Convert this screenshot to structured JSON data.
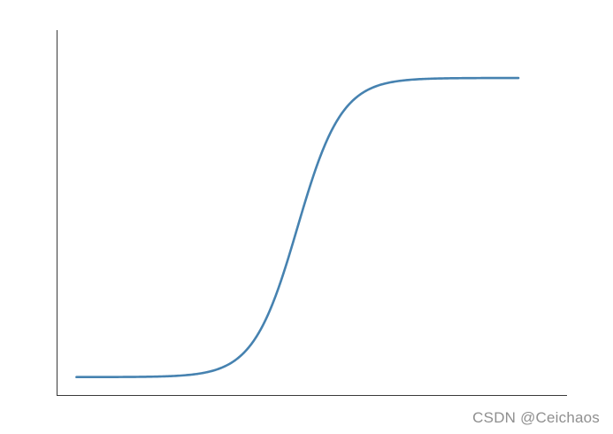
{
  "watermark": "CSDN @Ceichaos",
  "colors": {
    "series": "#4682b0",
    "axis": "#3a3a3a"
  },
  "chart_data": {
    "type": "line",
    "curve": "sigmoid",
    "x": [
      -10,
      -8,
      -6,
      -4,
      -3,
      -2,
      -1.5,
      -1,
      -0.5,
      0,
      0.5,
      1,
      1.5,
      2,
      3,
      4,
      6,
      8,
      10
    ],
    "series": [
      {
        "values": [
          4.54e-05,
          0.000335,
          0.00247,
          0.018,
          0.0474,
          0.119,
          0.182,
          0.269,
          0.378,
          0.5,
          0.622,
          0.731,
          0.818,
          0.881,
          0.953,
          0.982,
          0.9975,
          0.99966,
          0.99995
        ]
      }
    ],
    "xlim": [
      -10.9,
      12.2
    ],
    "ylim": [
      -0.06,
      1.16
    ],
    "grid": false,
    "axes": [
      "left",
      "bottom"
    ],
    "ticks": false
  }
}
